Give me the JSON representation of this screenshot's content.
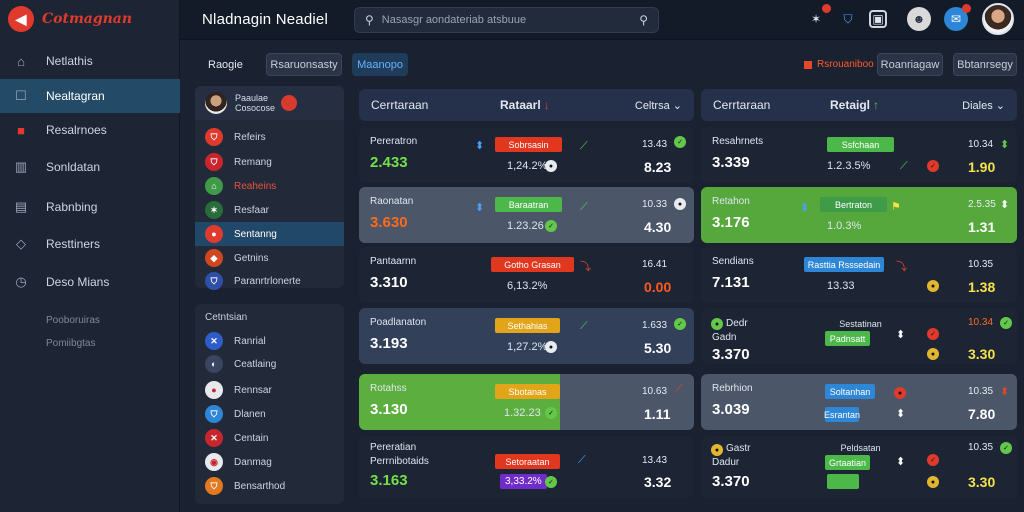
{
  "brand": {
    "name": "Cotmagnan",
    "accent": "#e03a2c"
  },
  "header": {
    "title": "Nladnagin  Neadiel",
    "search_placeholder": "Nasasgr aondateriab atsbuue"
  },
  "sidebar": {
    "items": [
      {
        "label": "Netlathis",
        "icon": "home-icon"
      },
      {
        "label": "Nealtagran",
        "icon": "chat-icon"
      },
      {
        "label": "Resalrnoes",
        "icon": "calendar-icon"
      },
      {
        "label": "Sonldatan",
        "icon": "columns-icon"
      },
      {
        "label": "Rabnbing",
        "icon": "document-icon"
      },
      {
        "label": "Resttiners",
        "icon": "shield-icon"
      },
      {
        "label": "Deso Mians",
        "icon": "clock-icon"
      }
    ],
    "sub_items": [
      "Pooboruiras",
      "Pomiibgtas"
    ]
  },
  "toolbar": {
    "filter_label": "Raogie",
    "chip_1": "Rsaruonsasty",
    "chip_2": "Maanopo",
    "live_label": "Rsrouaniboo",
    "btn_1": "Roanriagaw",
    "btn_2": "Bbtanrsegy"
  },
  "list_panel": {
    "head_line1": "Paaulae",
    "head_line2": "Cosocose",
    "rows_top": [
      "Refeirs",
      "Remang",
      "Reaheins",
      "Resfaar",
      "Sentanng",
      "Getnins",
      "Paranrtrlonerte"
    ],
    "section_title": "Cetntsian",
    "rows_bottom": [
      "Ranrial",
      "Ceatlaing",
      "Rennsar",
      "Dlanen",
      "Centain",
      "Danmag",
      "Bensarthod"
    ]
  },
  "column_left": {
    "title": "Cerrtaraan",
    "mid": "Rataarl",
    "right": "Celtrsa",
    "cards": [
      {
        "team": "Pereratron",
        "odds": "2.433",
        "tag": "Sobrsasin",
        "pct": "1,24.2%",
        "mini": "13.43",
        "big": "8.23"
      },
      {
        "team": "Raonatan",
        "odds": "3.630",
        "tag": "Baraatran",
        "pct": "1.23.26",
        "mini": "10.33",
        "big": "4.30"
      },
      {
        "team": "Pantaarnn",
        "odds": "3.310",
        "tag": "Gotho Grasan",
        "pct": "6,13.2%",
        "mini": "16.41",
        "big": "0.00"
      },
      {
        "team": "Poadlanaton",
        "odds": "3.193",
        "tag": "Sethahias",
        "pct": "1,27.2%",
        "mini": "1.633",
        "big": "5.30"
      },
      {
        "team": "Rotahss",
        "odds": "3.130",
        "tag": "Sbotanas",
        "pct": "1.32.23",
        "mini": "10.63",
        "big": "1.11"
      },
      {
        "team": "Pereratian",
        "team2": "Perrnibotaids",
        "odds": "3.163",
        "tag": "Setoraatan",
        "pct": "3,33.2%",
        "mini": "13.43",
        "big": "3.32"
      }
    ]
  },
  "column_right": {
    "title": "Cerrtaraan",
    "mid": "Retaigl",
    "right": "Diales",
    "cards": [
      {
        "team": "Resahrnets",
        "odds": "3.339",
        "tag": "Ssfchaan",
        "pct": "1.2.3.5%",
        "mini": "10.34",
        "big": "1.90"
      },
      {
        "team": "Retahon",
        "odds": "3.176",
        "tag": "Bertraton",
        "pct": "1.0.3%",
        "mini": "2.5.35",
        "big": "1.31"
      },
      {
        "team": "Sendians",
        "odds": "7.131",
        "tag": "Rasttia Rsssedain",
        "pct": "13.33",
        "mini": "10.35",
        "big": "1.38"
      },
      {
        "team": "Dedr",
        "team2": "Gadn",
        "odds": "3.370",
        "tag": "Sestatinan",
        "tag2": "Padnsatt",
        "pct": "",
        "mini": "10.34",
        "big": "3.30"
      },
      {
        "team": "Rebrhion",
        "odds": "3.039",
        "tag": "Soltanhan",
        "tag2": "Esrantan",
        "mini": "10.35",
        "big": "7.80"
      },
      {
        "team": "Gastr",
        "team2": "Dadur",
        "odds": "3.370",
        "tag": "Peldsatan",
        "tag2": "Grtaatian",
        "mini": "10.35",
        "big": "3.30"
      }
    ]
  }
}
